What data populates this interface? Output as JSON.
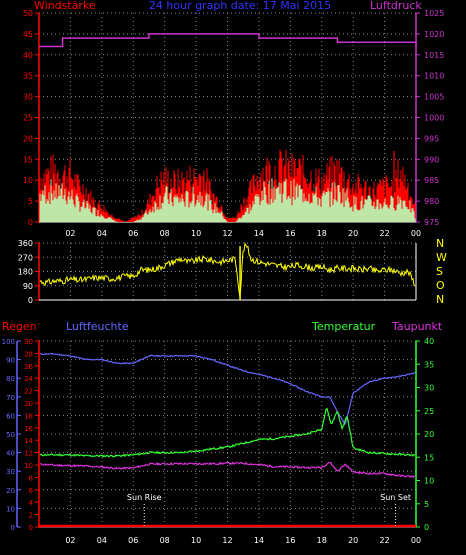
{
  "chart_data": [
    {
      "id": "wind_pressure",
      "type": "line",
      "title": "24 hour graph date: 17 Mai 2015",
      "left_label": "Windstärke",
      "right_label": "Luftdruck",
      "x_ticks": [
        "02",
        "04",
        "06",
        "08",
        "10",
        "12",
        "14",
        "16",
        "18",
        "20",
        "22",
        "00"
      ],
      "y_left_ticks": [
        0,
        5,
        10,
        15,
        20,
        25,
        30,
        35,
        40,
        45,
        50
      ],
      "y_left_range": [
        0,
        50
      ],
      "y_right_ticks": [
        975,
        980,
        985,
        990,
        995,
        1000,
        1005,
        1010,
        1015,
        1020,
        1025
      ],
      "y_right_range": [
        975,
        1025
      ],
      "colors": {
        "gust": "#ff0000",
        "wind": "#b8ffb8",
        "pressure": "#cc33cc",
        "left_axis": "#ff0000",
        "right_axis": "#cc33cc",
        "title": "#3333ff"
      },
      "pressure": {
        "x": [
          0,
          1.5,
          3,
          5,
          7,
          9,
          11,
          12,
          13,
          14,
          15,
          16,
          17,
          18,
          19,
          20,
          21,
          22,
          23,
          24
        ],
        "y": [
          1017,
          1019,
          1019,
          1019,
          1020,
          1020,
          1020,
          1020,
          1020,
          1019,
          1019,
          1019,
          1019,
          1019,
          1018,
          1018,
          1018,
          1018,
          1018,
          1017
        ]
      },
      "gust_envelope": {
        "x": [
          0,
          0.5,
          1,
          1.5,
          2,
          2.5,
          3,
          3.5,
          4,
          4.5,
          5,
          5.5,
          6,
          6.5,
          7,
          7.5,
          8,
          8.5,
          9,
          9.5,
          10,
          10.5,
          11,
          11.5,
          12,
          12.5,
          13,
          13.5,
          14,
          14.5,
          15,
          15.5,
          16,
          16.5,
          17,
          17.5,
          18,
          18.5,
          19,
          19.5,
          20,
          20.5,
          21,
          21.5,
          22,
          22.5,
          23,
          23.5,
          24
        ],
        "y": [
          11,
          12,
          13,
          12,
          12,
          9,
          8,
          5,
          4,
          2,
          1,
          0,
          1,
          2,
          5,
          9,
          11,
          10,
          10,
          11,
          11,
          12,
          7,
          5,
          1,
          1,
          5,
          8,
          12,
          13,
          13,
          14,
          13,
          13,
          12,
          11,
          10,
          12,
          13,
          11,
          9,
          9,
          8,
          8,
          9,
          9,
          13,
          9,
          3
        ]
      },
      "wind_avg": {
        "x": [
          0,
          0.5,
          1,
          1.5,
          2,
          2.5,
          3,
          3.5,
          4,
          4.5,
          5,
          5.5,
          6,
          6.5,
          7,
          7.5,
          8,
          8.5,
          9,
          9.5,
          10,
          10.5,
          11,
          11.5,
          12,
          12.5,
          13,
          13.5,
          14,
          14.5,
          15,
          15.5,
          16,
          16.5,
          17,
          17.5,
          18,
          18.5,
          19,
          19.5,
          20,
          20.5,
          21,
          21.5,
          22,
          22.5,
          23,
          23.5,
          24
        ],
        "y": [
          7,
          8,
          8,
          8,
          7,
          5,
          4,
          3,
          2,
          1,
          0,
          0,
          0,
          1,
          3,
          5,
          7,
          6,
          6,
          6,
          7,
          7,
          4,
          3,
          0,
          0,
          2,
          4,
          7,
          8,
          9,
          9,
          8,
          8,
          8,
          7,
          6,
          7,
          8,
          7,
          5,
          5,
          5,
          5,
          5,
          5,
          6,
          5,
          1
        ]
      }
    },
    {
      "id": "wind_direction",
      "type": "line",
      "y_ticks": [
        0,
        90,
        180,
        270,
        360
      ],
      "y_range": [
        0,
        360
      ],
      "right_labels": [
        "N",
        "W",
        "S",
        "O",
        "N"
      ],
      "colors": {
        "direction": "#ffff00",
        "axis": "#ff0000",
        "compass": "#ffff00"
      },
      "direction": {
        "x": [
          0,
          0.5,
          1,
          1.5,
          2,
          2.5,
          3,
          3.5,
          4,
          4.5,
          5,
          5.5,
          6,
          6.5,
          7,
          7.5,
          8,
          8.5,
          9,
          9.5,
          10,
          10.5,
          11,
          11.5,
          12,
          12.5,
          12.8,
          13,
          13.2,
          13.5,
          14,
          14.5,
          15,
          15.5,
          16,
          16.5,
          17,
          17.5,
          18,
          18.5,
          19,
          19.5,
          20,
          20.5,
          21,
          21.5,
          22,
          22.5,
          23,
          23.5,
          24
        ],
        "y": [
          120,
          110,
          120,
          120,
          130,
          125,
          130,
          140,
          140,
          135,
          140,
          150,
          150,
          190,
          190,
          200,
          220,
          240,
          260,
          240,
          250,
          260,
          250,
          240,
          250,
          260,
          20,
          320,
          350,
          260,
          240,
          230,
          220,
          210,
          210,
          220,
          210,
          200,
          210,
          190,
          200,
          200,
          200,
          190,
          200,
          180,
          190,
          190,
          170,
          180,
          90
        ]
      }
    },
    {
      "id": "temp_humidity",
      "type": "line",
      "labels": {
        "rain": "Regen",
        "humidity": "Luftfeuchte",
        "temperature": "Temperatur",
        "dewpoint": "Taupunkt"
      },
      "humidity_ticks": [
        0,
        10,
        20,
        30,
        40,
        50,
        60,
        70,
        80,
        90,
        100
      ],
      "rain_ticks": [
        0,
        2,
        4,
        6,
        8,
        10,
        12,
        14,
        16,
        18,
        20,
        22,
        24,
        26,
        28,
        30
      ],
      "temp_ticks": [
        0,
        5,
        10,
        15,
        20,
        25,
        30,
        35,
        40
      ],
      "humidity_range": [
        0,
        100
      ],
      "rain_range": [
        0,
        30
      ],
      "temp_range": [
        0,
        40
      ],
      "x_ticks": [
        "02",
        "04",
        "06",
        "08",
        "10",
        "12",
        "14",
        "16",
        "18",
        "20",
        "22",
        "00"
      ],
      "annotations": [
        {
          "text": "Sun Rise",
          "x": 6.7
        },
        {
          "text": "Sun Set",
          "x": 22.7
        }
      ],
      "colors": {
        "humidity": "#6666ff",
        "temperature": "#33ff33",
        "dewpoint": "#dd33dd",
        "rain": "#ff0000",
        "humidity_axis": "#6666ff",
        "rain_axis": "#ff0000",
        "temp_axis": "#33ff33"
      },
      "humidity": {
        "x": [
          0,
          1,
          2,
          3,
          4,
          5,
          6,
          7,
          8,
          9,
          10,
          11,
          12,
          13,
          14,
          15,
          16,
          17,
          18,
          18.5,
          19,
          19.5,
          20,
          21,
          22,
          23,
          24
        ],
        "y": [
          93,
          93,
          92,
          90,
          90,
          88,
          88,
          92,
          92,
          92,
          92,
          90,
          87,
          84,
          82,
          80,
          77,
          73,
          70,
          70,
          62,
          55,
          72,
          78,
          80,
          81,
          83
        ]
      },
      "temperature": {
        "x": [
          0,
          1,
          2,
          3,
          4,
          5,
          6,
          7,
          8,
          9,
          10,
          11,
          12,
          13,
          14,
          15,
          16,
          17,
          18,
          18.3,
          18.6,
          19,
          19.3,
          19.6,
          20,
          21,
          22,
          23,
          24
        ],
        "y": [
          15.5,
          15.5,
          15.5,
          15.3,
          15.3,
          15.3,
          15.5,
          16,
          16,
          16,
          16.3,
          16.8,
          17.2,
          18,
          18.8,
          19,
          19.5,
          20,
          21,
          26,
          22,
          25,
          21,
          24,
          17,
          16,
          15.8,
          15.6,
          15.4
        ]
      },
      "dewpoint": {
        "x": [
          0,
          1,
          2,
          3,
          4,
          5,
          6,
          7,
          8,
          9,
          10,
          11,
          12,
          13,
          14,
          15,
          16,
          17,
          18,
          18.5,
          19,
          19.5,
          20,
          21,
          22,
          23,
          24
        ],
        "y": [
          13.5,
          13.3,
          13.2,
          13.1,
          12.9,
          12.6,
          12.7,
          13.5,
          13.6,
          13.6,
          13.6,
          13.6,
          13.7,
          13.7,
          13.4,
          13,
          12.9,
          12.8,
          12.8,
          14,
          12,
          13.5,
          11.8,
          11.5,
          11.5,
          11,
          10.8
        ]
      },
      "rain": {
        "x": [
          0,
          24
        ],
        "y": [
          0,
          0
        ]
      }
    }
  ]
}
